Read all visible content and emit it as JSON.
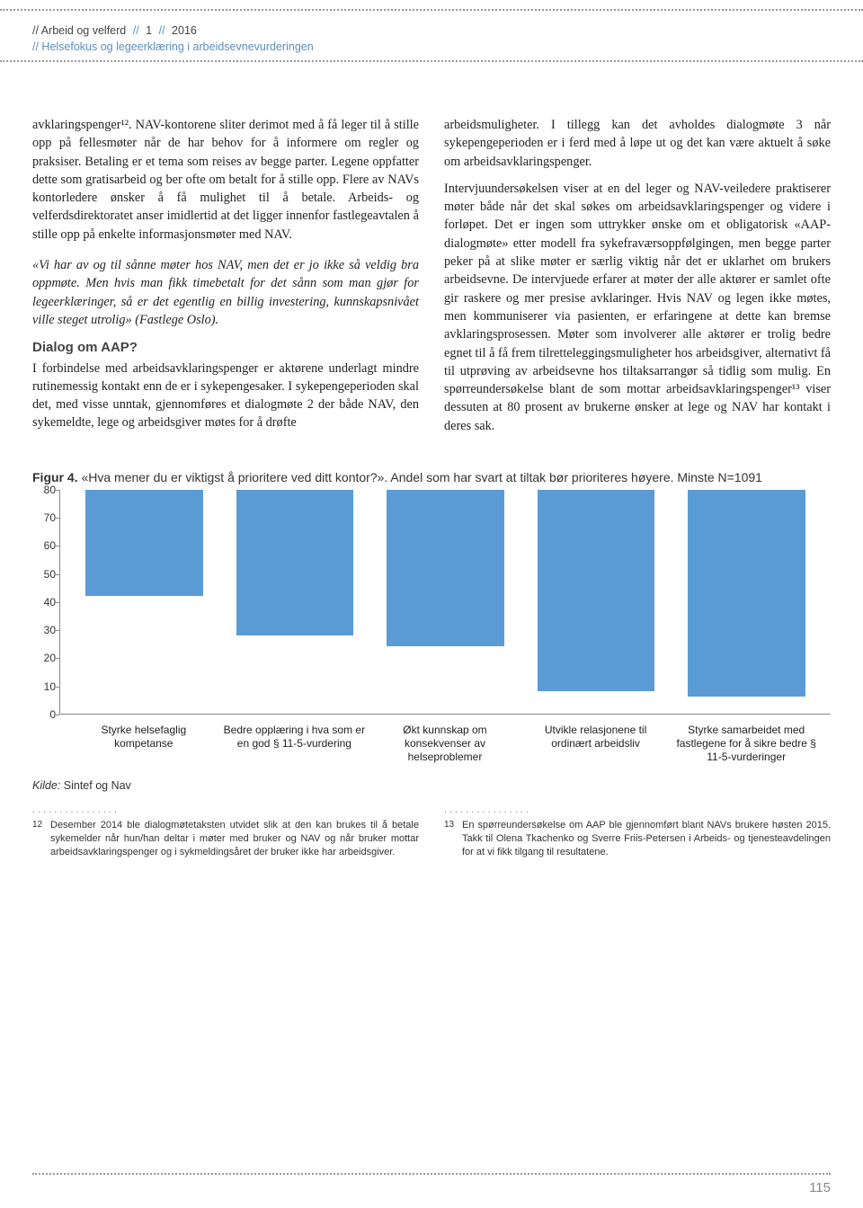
{
  "header": {
    "journal": "Arbeid og velferd",
    "issue": "1",
    "year": "2016",
    "subtitle": "Helsefokus og legeerklæring i arbeidsevnevurderingen"
  },
  "left_col": {
    "p1": "avklaringspenger¹². NAV-kontorene sliter derimot med å få leger til å stille opp på fellesmøter når de har behov for å informere om regler og praksiser. Betaling er et tema som reises av begge parter. Legene oppfatter dette som gratisarbeid og ber ofte om betalt for å stille opp. Flere av NAVs kontorledere ønsker å få mulighet til å betale. Arbeids- og velferdsdirektoratet anser imidlertid at det ligger innenfor fastlegeavtalen å stille opp på enkelte informasjonsmøter med NAV.",
    "quote": "«Vi har av og til sånne møter hos NAV, men det er jo ikke så veldig bra oppmøte. Men hvis man fikk timebetalt for det sånn som man gjør for legeerklæringer, så er det egentlig en billig investering, kunnskapsnivået ville steget utrolig» (Fastlege Oslo).",
    "subhead": "Dialog om AAP?",
    "p2": "I forbindelse med arbeidsavklaringspenger er aktørene underlagt mindre rutinemessig kontakt enn de er i sykepengesaker. I sykepengeperioden skal det, med visse unntak, gjennomføres et dialogmøte 2 der både NAV, den sykemeldte, lege og arbeidsgiver møtes for å drøfte"
  },
  "right_col": {
    "p1": "arbeidsmuligheter. I tillegg kan det avholdes dialogmøte 3 når sykepengeperioden er i ferd med å løpe ut og det kan være aktuelt å søke om arbeidsavklaringspenger.",
    "p2": "Intervjuundersøkelsen viser at en del leger og NAV-veiledere praktiserer møter både når det skal søkes om arbeidsavklaringspenger og videre i forløpet. Det er ingen som uttrykker ønske om et obligatorisk «AAP-dialogmøte» etter modell fra sykefraværsoppfølgingen, men begge parter peker på at slike møter er særlig viktig når det er uklarhet om brukers arbeidsevne. De intervjuede erfarer at møter der alle aktører er samlet ofte gir raskere og mer presise avklaringer. Hvis NAV og legen ikke møtes, men kommuniserer via pasienten, er erfaringene at dette kan bremse avklaringsprosessen. Møter som involverer alle aktører er trolig bedre egnet til å få frem tilretteleggingsmuligheter hos arbeidsgiver, alternativt få til utprøving av arbeidsevne hos tiltaksarrangør så tidlig som mulig. En spørreundersøkelse blant de som mottar arbeidsavklaringspenger¹³ viser dessuten at 80 prosent av brukerne ønsker at lege og NAV har kontakt i deres sak."
  },
  "figure": {
    "label": "Figur 4.",
    "caption": "«Hva mener du er viktigst å prioritere ved ditt kontor?». Andel som har svart at tiltak bør prioriteres høyere. Minste N=1091",
    "chart": {
      "type": "bar",
      "ymax": 80,
      "ytick_step": 10,
      "bar_color": "#5b9bd5",
      "axis_color": "#888888",
      "label_fontsize": 12,
      "categories": [
        "Styrke helsefaglig kompetanse",
        "Bedre opplæring i hva som er en god § 11-5-vurdering",
        "Økt kunnskap om konsekvenser av helseproblemer",
        "Utvikle relasjonene til ordinært arbeidsliv",
        "Styrke samarbeidet med fastlegene for å sikre bedre § 11-5-vurderinger"
      ],
      "values": [
        38,
        52,
        56,
        72,
        74
      ]
    },
    "source_label": "Kilde:",
    "source": "Sintef og Nav"
  },
  "footnotes": {
    "fn12_num": "12",
    "fn12": "Desember 2014 ble dialogmøtetaksten utvidet slik at den kan brukes til å betale sykemelder når hun/han deltar i møter med bruker og NAV og når bruker mottar arbeidsavklaringspenger og i sykmeldingsåret der bruker ikke har arbeidsgiver.",
    "fn13_num": "13",
    "fn13": "En spørreundersøkelse om AAP ble gjennomført blant NAVs brukere høsten 2015. Takk til Olena Tkachenko og Sverre Friis-Petersen i Arbeids- og tjenesteavdelingen for at vi fikk tilgang til resultatene."
  },
  "page_number": "115"
}
